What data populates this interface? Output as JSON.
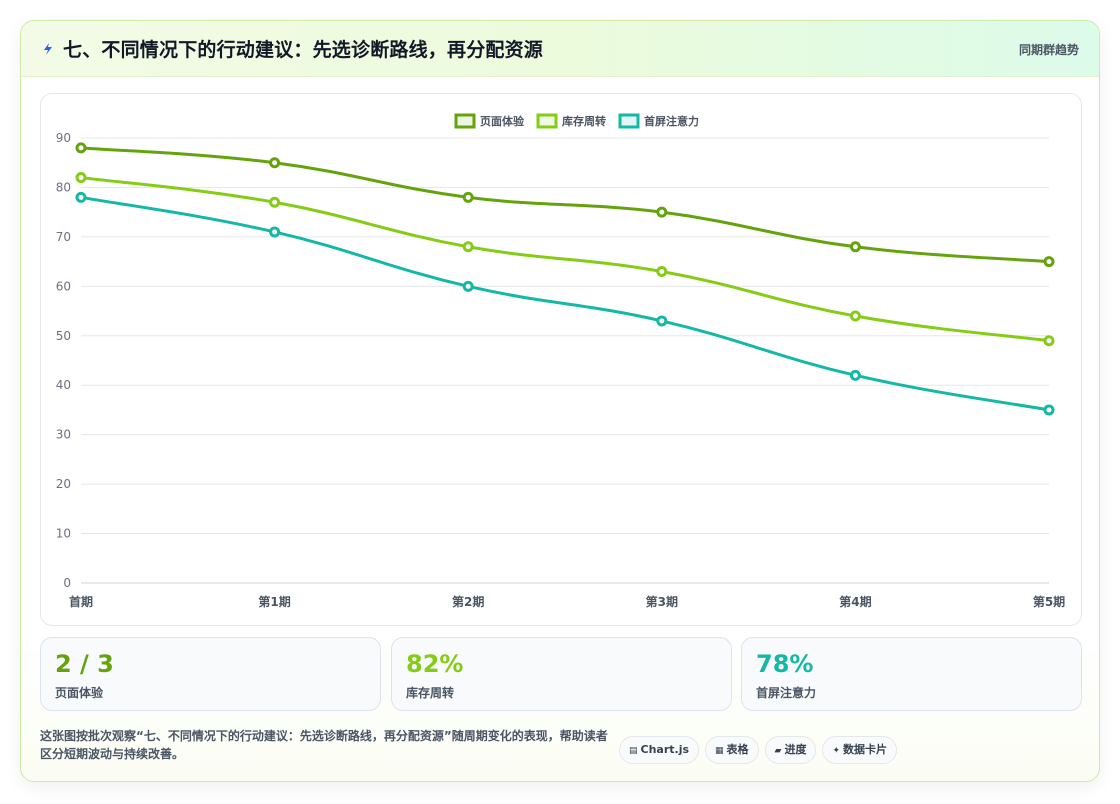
{
  "header": {
    "icon": "lightning-icon",
    "title": "七、不同情况下的行动建议：先选诊断路线，再分配资源",
    "right_label": "同期群趋势"
  },
  "chart_data": {
    "type": "line",
    "categories": [
      "首期",
      "第1期",
      "第2期",
      "第3期",
      "第4期",
      "第5期"
    ],
    "series": [
      {
        "name": "页面体验",
        "color": "#65a30d",
        "values": [
          88,
          85,
          78,
          75,
          68,
          65
        ]
      },
      {
        "name": "库存周转",
        "color": "#84cc16",
        "values": [
          82,
          77,
          68,
          63,
          54,
          49
        ]
      },
      {
        "name": "首屏注意力",
        "color": "#14b8a6",
        "values": [
          78,
          71,
          60,
          53,
          42,
          35
        ]
      }
    ],
    "yticks": [
      "0",
      "10",
      "20",
      "30",
      "40",
      "50",
      "60",
      "70",
      "80",
      "90"
    ],
    "ylim": [
      0,
      90
    ],
    "grid": true,
    "legend_position": "top-center"
  },
  "stats": [
    {
      "value": "2 / 3",
      "label": "页面体验",
      "color": "#65a30d"
    },
    {
      "value": "82%",
      "label": "库存周转",
      "color": "#84cc16"
    },
    {
      "value": "78%",
      "label": "首屏注意力",
      "color": "#14b8a6"
    }
  ],
  "footer": {
    "description": "这张图按批次观察“七、不同情况下的行动建议：先选诊断路线，再分配资源”随周期变化的表现，帮助读者区分短期波动与持续改善。",
    "tags": [
      {
        "icon": "chart-icon",
        "glyph": "▤",
        "label": "Chart.js"
      },
      {
        "icon": "table-icon",
        "glyph": "▦",
        "label": "表格"
      },
      {
        "icon": "progress-icon",
        "glyph": "▰",
        "label": "进度"
      },
      {
        "icon": "sparkle-icon",
        "glyph": "✦",
        "label": "数据卡片"
      }
    ]
  }
}
